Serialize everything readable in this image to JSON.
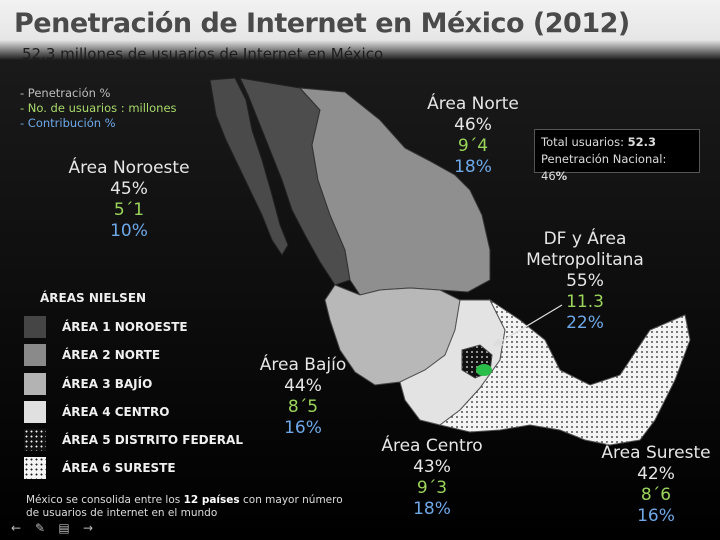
{
  "title": "Penetración de Internet en México (2012)",
  "subtitle": "52.3  millones de usuarios de Internet en México",
  "legend_top": [
    "- Penetración %",
    "- No. de usuarios : millones",
    "- Contribución %"
  ],
  "total_box": {
    "line1_label": "Total usuarios: ",
    "line1_value": "52.3",
    "line2_label": "Penetración Nacional: 46",
    "line2_unit": "%"
  },
  "areas": {
    "noroeste": {
      "name": "Área Noroeste",
      "pen": "45%",
      "users": "5´1",
      "contrib": "10%"
    },
    "norte": {
      "name": "Área Norte",
      "pen": "46%",
      "users": "9´4",
      "contrib": "18%"
    },
    "df": {
      "name1": "DF y Área",
      "name2": "Metropolitana",
      "pen": "55%",
      "users": "11.3",
      "contrib": "22%"
    },
    "bajio": {
      "name": "Área Bajío",
      "pen": "44%",
      "users": "8´5",
      "contrib": "16%"
    },
    "centro": {
      "name": "Área Centro",
      "pen": "43%",
      "users": "9´3",
      "contrib": "18%"
    },
    "sureste": {
      "name": "Área Sureste",
      "pen": "42%",
      "users": "8´6",
      "contrib": "16%"
    }
  },
  "nielsen": {
    "heading": "ÁREAS NIELSEN",
    "items": [
      {
        "label": "ÁREA 1 NOROESTE",
        "color": "#454545"
      },
      {
        "label": "ÁREA 2  NORTE",
        "color": "#8a8a8a"
      },
      {
        "label": "ÁREA 3 BAJÍO",
        "color": "#b3b3b3"
      },
      {
        "label": "ÁREA 4  CENTRO",
        "color": "#e0e0e0"
      },
      {
        "label": "ÁREA 5  DISTRITO FEDERAL",
        "color": "dots-dark"
      },
      {
        "label": "ÁREA 6 SURESTE",
        "color": "dots-light"
      }
    ]
  },
  "note": {
    "pre": "México se consolida entre los ",
    "bold": "12 países",
    "post": " con mayor número de usuarios de internet en el mundo"
  },
  "icons": [
    "arrow-left-icon",
    "pen-icon",
    "menu-icon",
    "arrow-right-icon"
  ]
}
